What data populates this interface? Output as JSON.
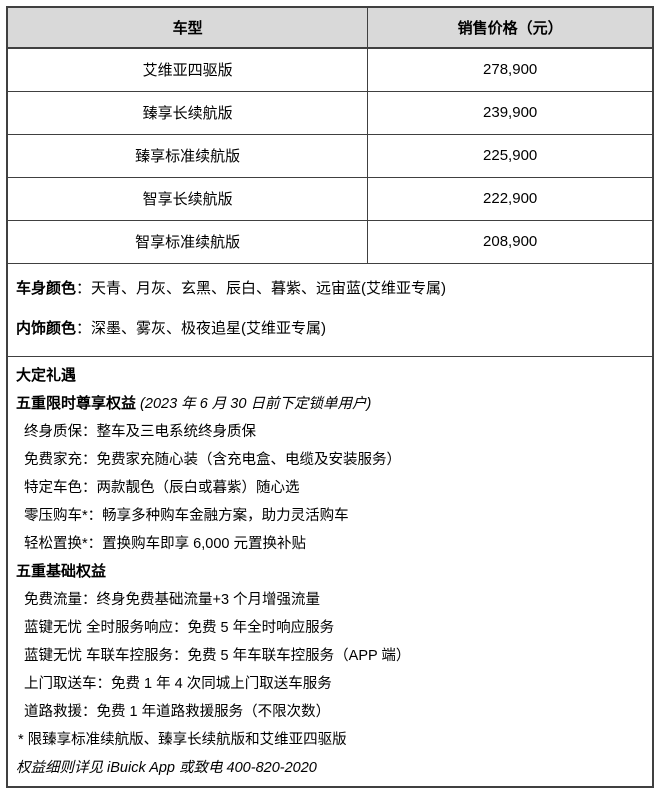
{
  "style": {
    "header_bg": "#D9D9D9",
    "border_color": "#404040"
  },
  "header": {
    "model_col": "车型",
    "price_col": "销售价格（元）"
  },
  "rows": [
    {
      "model": "艾维亚四驱版",
      "price": "278,900"
    },
    {
      "model": "臻享长续航版",
      "price": "239,900"
    },
    {
      "model": "臻享标准续航版",
      "price": "225,900"
    },
    {
      "model": "智享长续航版",
      "price": "222,900"
    },
    {
      "model": "智享标准续航版",
      "price": "208,900"
    }
  ],
  "colors": {
    "body_label": "车身颜色",
    "body_text": "：天青、月灰、玄黑、辰白、暮紫、远宙蓝(艾维亚专属)",
    "interior_label": "内饰颜色",
    "interior_text": "：深墨、雾灰、极夜追星(艾维亚专属)"
  },
  "benefits": {
    "title": "大定礼遇",
    "limited": {
      "title": "五重限时尊享权益",
      "note": "(2023 年 6 月 30 日前下定锁单用户)",
      "items": [
        "终身质保：整车及三电系统终身质保",
        "免费家充：免费家充随心装（含充电盒、电缆及安装服务）",
        "特定车色：两款靓色（辰白或暮紫）随心选",
        "零压购车*：畅享多种购车金融方案，助力灵活购车",
        "轻松置换*：置换购车即享 6,000 元置换补贴"
      ]
    },
    "base": {
      "title": "五重基础权益",
      "items": [
        "免费流量：终身免费基础流量+3 个月增强流量",
        "蓝键无忧 全时服务响应：免费 5 年全时响应服务",
        "蓝键无忧 车联车控服务：免费 5 年车联车控服务（APP 端）",
        "上门取送车：免费 1 年 4 次同城上门取送车服务",
        "道路救援：免费 1 年道路救援服务（不限次数）"
      ]
    },
    "footnote": "* 限臻享标准续航版、臻享长续航版和艾维亚四驱版",
    "legal": "权益细则详见 iBuick App 或致电 400-820-2020"
  }
}
